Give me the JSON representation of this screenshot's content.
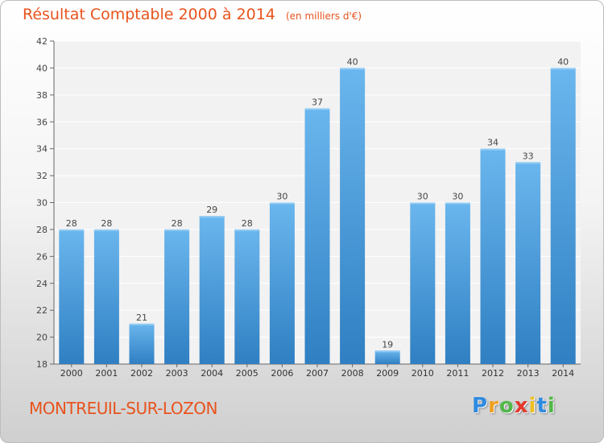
{
  "title": "Résultat Comptable 2000 à 2014",
  "subtitle": "(en milliers d'€)",
  "city": "MONTREUIL-SUR-LOZON",
  "logo": {
    "letters": [
      "P",
      "r",
      "o",
      "x",
      "i",
      "t",
      "i"
    ],
    "colors": [
      "#2e8be0",
      "#f0a020",
      "#52b84a",
      "#e2382b",
      "#f0c020",
      "#2e8be0",
      "#52b84a"
    ]
  },
  "colors": {
    "accent": "#e8531d",
    "bar_light": "#6ab6ee",
    "bar_dark": "#2f7fc2",
    "plot_bg": "#f2f2f2",
    "grid": "#ffffff"
  },
  "chart_data": {
    "type": "bar",
    "categories": [
      "2000",
      "2001",
      "2002",
      "2003",
      "2004",
      "2005",
      "2006",
      "2007",
      "2008",
      "2009",
      "2010",
      "2011",
      "2012",
      "2013",
      "2014"
    ],
    "values": [
      28,
      28,
      21,
      28,
      29,
      28,
      30,
      37,
      40,
      19,
      30,
      30,
      34,
      33,
      40
    ],
    "ylim": [
      18,
      42
    ],
    "yticks": [
      18,
      20,
      22,
      24,
      26,
      28,
      30,
      32,
      34,
      36,
      38,
      40,
      42
    ],
    "grid": true,
    "data_labels": true
  }
}
